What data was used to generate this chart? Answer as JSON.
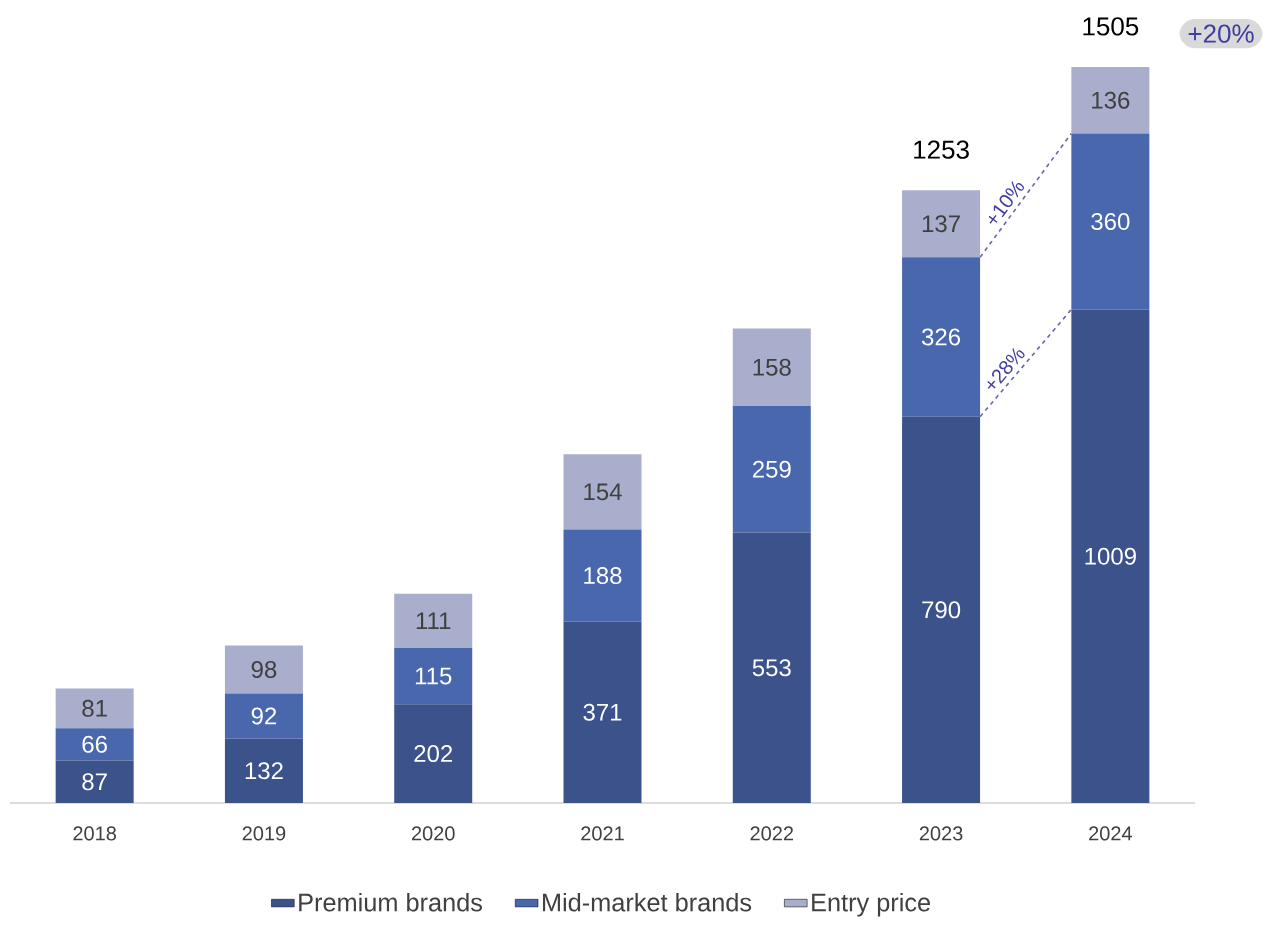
{
  "chart_data": {
    "type": "bar",
    "stacked": true,
    "data_labels": true,
    "legend": "bottom",
    "categories": [
      "2018",
      "2019",
      "2020",
      "2021",
      "2022",
      "2023",
      "2024"
    ],
    "series": [
      {
        "name": "Premium brands",
        "color": "#3c528b",
        "values": [
          87,
          132,
          202,
          371,
          553,
          790,
          1009
        ]
      },
      {
        "name": "Mid-market brands",
        "color": "#4867ad",
        "values": [
          66,
          92,
          115,
          188,
          259,
          326,
          360
        ]
      },
      {
        "name": "Entry price",
        "color": "#a8aecb",
        "values": [
          81,
          98,
          111,
          154,
          158,
          137,
          136
        ]
      }
    ],
    "totals": [
      null,
      null,
      null,
      null,
      null,
      "1253",
      "1505"
    ],
    "annotations": [
      "+10%",
      "+28%",
      "+20%"
    ]
  }
}
